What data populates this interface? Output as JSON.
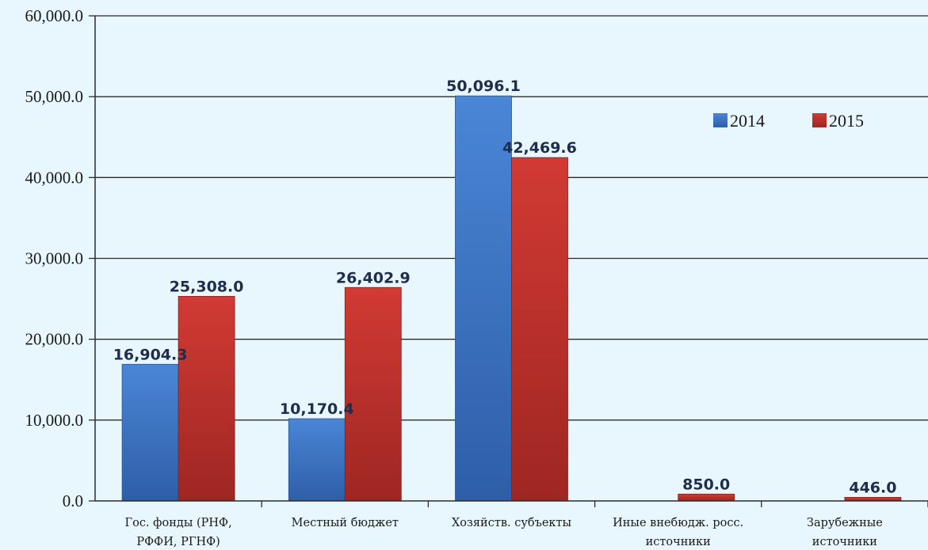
{
  "chart_data": {
    "type": "bar",
    "title": "",
    "xlabel": "",
    "ylabel": "",
    "ylim": [
      0,
      60000
    ],
    "y_ticks": [
      "0.0",
      "10,000.0",
      "20,000.0",
      "30,000.0",
      "40,000.0",
      "50,000.0",
      "60,000.0"
    ],
    "y_tick_values": [
      0,
      10000,
      20000,
      30000,
      40000,
      50000,
      60000
    ],
    "grid": true,
    "legend_position": "top-right",
    "categories": [
      [
        "Гос. фонды  (РНФ,",
        "РФФИ, РГНФ)"
      ],
      [
        "Местный бюджет"
      ],
      [
        "Хозяйств. субъекты"
      ],
      [
        "Иные внебюдж. росс.",
        "источники"
      ],
      [
        "Зарубежные",
        "источники"
      ]
    ],
    "series": [
      {
        "name": "2014",
        "color": "#3d72c4",
        "values": [
          16904.3,
          10170.4,
          50096.1,
          0,
          0
        ],
        "labels": [
          "16,904.3",
          "10,170.4",
          "50,096.1",
          "",
          ""
        ]
      },
      {
        "name": "2015",
        "color": "#c2312c",
        "values": [
          25308.0,
          26402.9,
          42469.6,
          850.0,
          446.0
        ],
        "labels": [
          "25,308.0",
          "26,402.9",
          "42,469.6",
          "850.0",
          "446.0"
        ]
      }
    ]
  }
}
